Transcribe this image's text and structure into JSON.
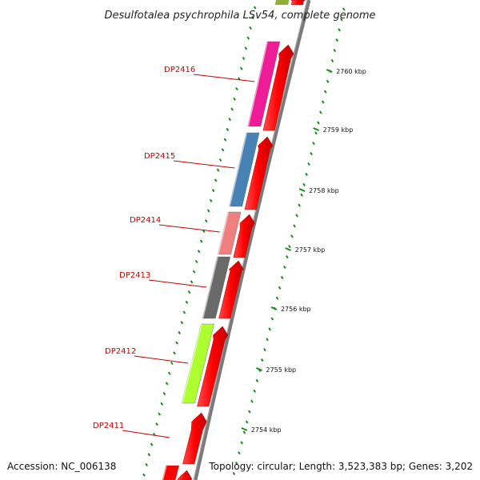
{
  "title": "Desulfotalea psychrophila LSv54, complete genome",
  "footer": {
    "accession": "Accession: NC_006138",
    "summary": "Topology: circular; Length: 3,523,383 bp; Genes: 3,202"
  },
  "ruler": {
    "ticks": [
      {
        "label": "2760 kbp"
      },
      {
        "label": "2759 kbp"
      },
      {
        "label": "2758 kbp"
      },
      {
        "label": "2757 kbp"
      },
      {
        "label": "2756 kbp"
      },
      {
        "label": "2755 kbp"
      },
      {
        "label": "2754 kbp"
      }
    ]
  },
  "genes": [
    {
      "label": "DP2416",
      "color": "#ee1c96"
    },
    {
      "label": "DP2415",
      "color": "#4682b4"
    },
    {
      "label": "DP2414",
      "color": "#f08080"
    },
    {
      "label": "DP2413",
      "color": "#696969"
    },
    {
      "label": "DP2412",
      "color": "#adff2f"
    },
    {
      "label": "DP2411",
      "color": "#ff0000"
    }
  ],
  "colors": {
    "cds": "#ff0000",
    "backbone": "#808080",
    "tick": "#1a8a1a",
    "label": "#cc0000"
  }
}
